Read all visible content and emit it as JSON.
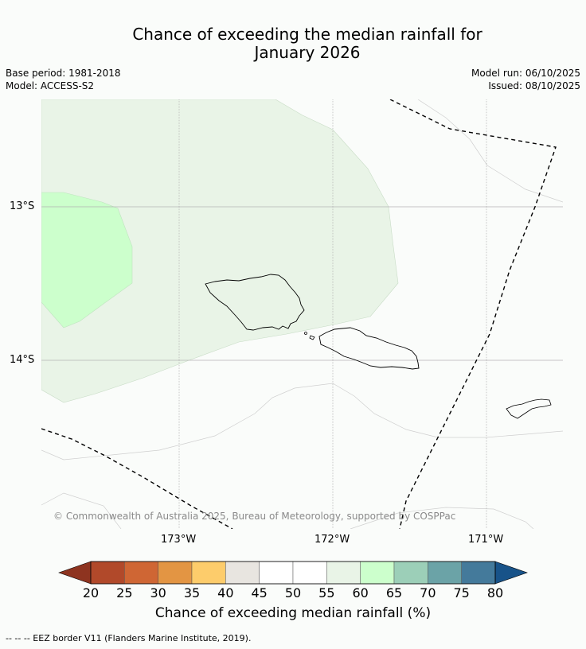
{
  "title_line1": "Chance of exceeding the median rainfall for",
  "title_line2": "January 2026",
  "meta_left": {
    "base_period": "Base period: 1981-2018",
    "model": "Model: ACCESS-S2"
  },
  "meta_right": {
    "model_run": "Model run: 06/10/2025",
    "issued": "Issued: 08/10/2025"
  },
  "lat_labels": [
    "13°S",
    "14°S"
  ],
  "lon_labels": [
    "173°W",
    "172°W",
    "171°W"
  ],
  "copyright": "© Commonwealth of Australia 2025, Bureau of Meteorology, supported by COSPPac",
  "colorbar": {
    "title": "Chance of exceeding median rainfall (%)",
    "ticks": [
      "20",
      "25",
      "30",
      "35",
      "40",
      "45",
      "50",
      "55",
      "60",
      "65",
      "70",
      "75",
      "80"
    ],
    "colors": [
      "#8e3420",
      "#b1492a",
      "#cf6634",
      "#e39543",
      "#fdcc6b",
      "#e8e5e0",
      "#ffffff",
      "#ffffff",
      "#e9f4e7",
      "#ccffcc",
      "#9ccfb8",
      "#6ba3a7",
      "#447a9b",
      "#185389"
    ]
  },
  "map_colors": {
    "band_55_60": "#e9f4e7",
    "band_60_65": "#ccffcc",
    "gridline": "#b3b3b3",
    "land_outline": "#000000",
    "eez": "#000000"
  },
  "footer": "--  --  -- EEZ border V11 (Flanders Marine Institute, 2019)."
}
